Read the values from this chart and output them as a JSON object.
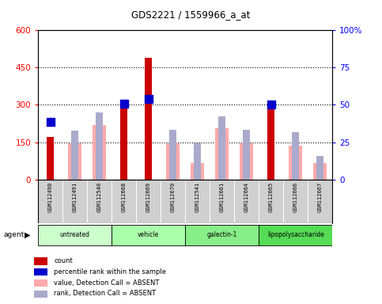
{
  "title": "GDS2221 / 1559966_a_at",
  "samples": [
    "GSM112490",
    "GSM112491",
    "GSM112540",
    "GSM112668",
    "GSM112669",
    "GSM112670",
    "GSM112541",
    "GSM112661",
    "GSM112664",
    "GSM112665",
    "GSM112666",
    "GSM112667"
  ],
  "groups": [
    {
      "label": "untreated",
      "indices": [
        0,
        1,
        2
      ]
    },
    {
      "label": "vehicle",
      "indices": [
        3,
        4,
        5
      ]
    },
    {
      "label": "galectin-1",
      "indices": [
        6,
        7,
        8
      ]
    },
    {
      "label": "lipopolysaccharide",
      "indices": [
        9,
        10,
        11
      ]
    }
  ],
  "count_values": [
    170,
    null,
    null,
    310,
    490,
    null,
    null,
    null,
    null,
    310,
    null,
    null
  ],
  "percentile_values": [
    230,
    null,
    null,
    305,
    325,
    null,
    null,
    null,
    null,
    300,
    null,
    null
  ],
  "absent_value_values": [
    null,
    145,
    220,
    null,
    null,
    145,
    65,
    205,
    145,
    null,
    135,
    65
  ],
  "absent_rank_values": [
    null,
    195,
    270,
    null,
    null,
    200,
    145,
    255,
    200,
    null,
    190,
    95
  ],
  "ylim_left": [
    0,
    600
  ],
  "ylim_right": [
    0,
    100
  ],
  "yticks_left": [
    0,
    150,
    300,
    450,
    600
  ],
  "yticks_right": [
    0,
    25,
    50,
    75,
    100
  ],
  "ytick_labels_right": [
    "0",
    "25",
    "50",
    "75",
    "100%"
  ],
  "colors": {
    "count": "#cc0000",
    "percentile": "#0000cc",
    "absent_value": "#ffaaaa",
    "absent_rank": "#aaaacc",
    "sample_bg": "#d0d0d0",
    "group_colors": [
      "#ccffcc",
      "#aaffaa",
      "#88ee88",
      "#55dd55"
    ]
  },
  "dotted_lines": [
    150,
    300,
    450
  ],
  "legend_items": [
    {
      "label": "count",
      "color": "#cc0000"
    },
    {
      "label": "percentile rank within the sample",
      "color": "#0000cc"
    },
    {
      "label": "value, Detection Call = ABSENT",
      "color": "#ffaaaa"
    },
    {
      "label": "rank, Detection Call = ABSENT",
      "color": "#aaaacc"
    }
  ]
}
